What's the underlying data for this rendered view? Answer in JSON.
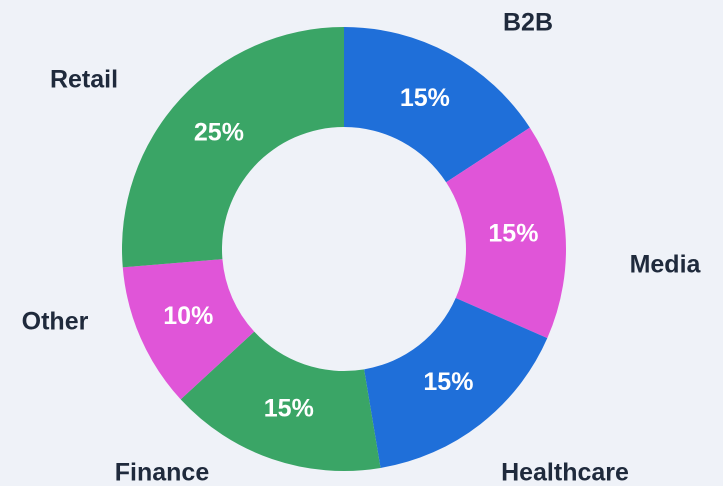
{
  "chart_data": {
    "type": "donut",
    "categories": [
      "B2B",
      "Media",
      "Healthcare",
      "Finance",
      "Other",
      "Retail"
    ],
    "values": [
      15,
      15,
      15,
      15,
      10,
      25
    ],
    "value_labels": [
      "15%",
      "15%",
      "15%",
      "15%",
      "10%",
      "25%"
    ],
    "colors": [
      "#1f6fd9",
      "#e055d8",
      "#1f6fd9",
      "#3aa566",
      "#e055d8",
      "#3aa566"
    ]
  }
}
